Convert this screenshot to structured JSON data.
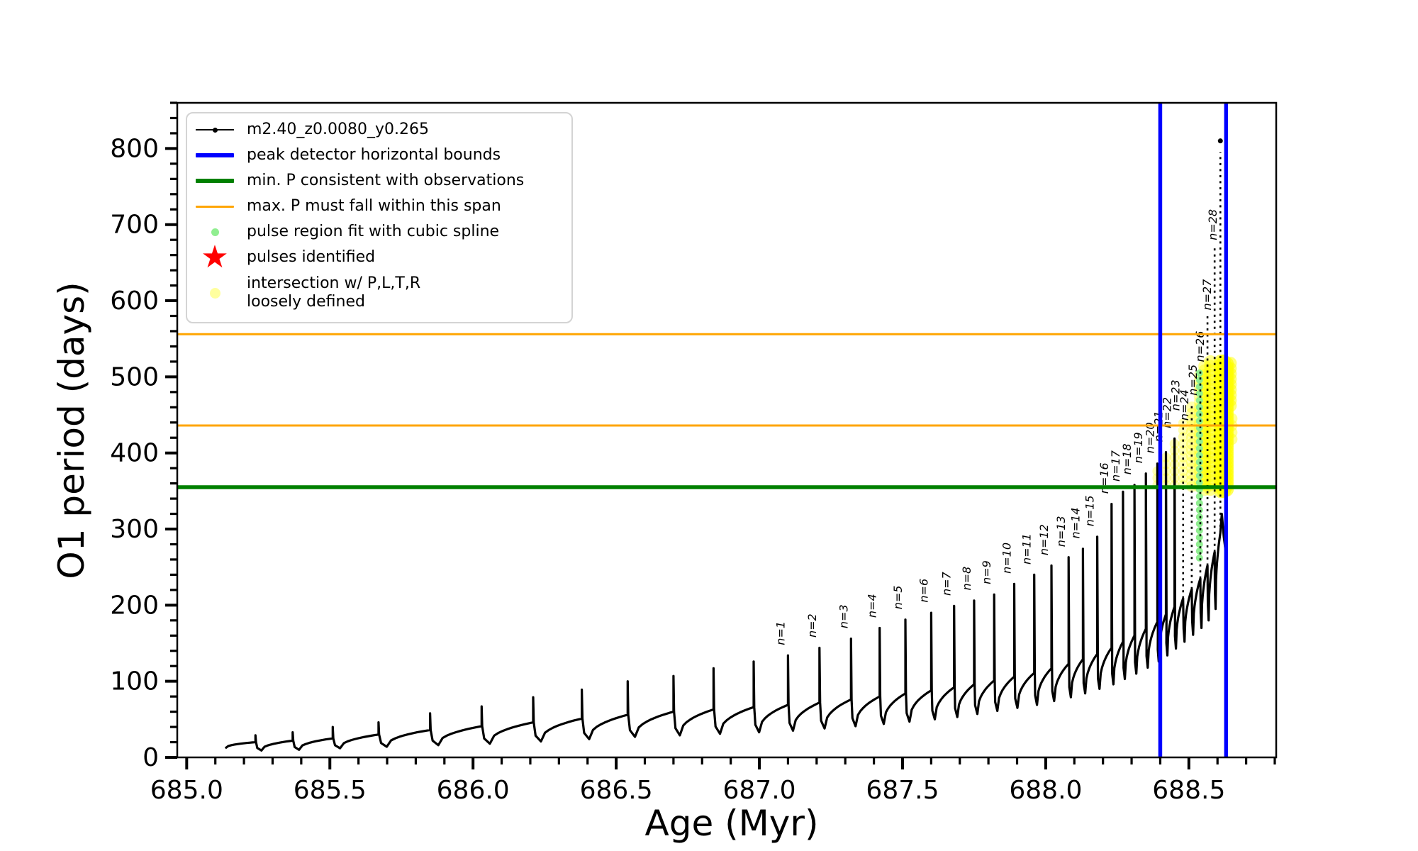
{
  "figure": {
    "xlabel": "Age (Myr)",
    "ylabel": "O1 period (days)",
    "background": "#ffffff"
  },
  "legend": {
    "items": [
      {
        "label": "m2.40_z0.0080_y0.265",
        "swatch": "line-dot",
        "color": "#000000"
      },
      {
        "label": "peak detector horizontal bounds",
        "swatch": "line",
        "color": "#0000ff"
      },
      {
        "label": "min. P consistent with observations",
        "swatch": "line",
        "color": "#008000"
      },
      {
        "label": "max. P must fall within this span",
        "swatch": "line",
        "color": "#ffa500"
      },
      {
        "label": "pulse region fit with cubic spline",
        "swatch": "dot",
        "color": "#90ee90"
      },
      {
        "label": "pulses identified",
        "swatch": "star",
        "color": "#ff0000"
      },
      {
        "label": "intersection w/ P,L,T,R\nloosely defined",
        "swatch": "dot-pale",
        "color": "#ffff00"
      }
    ]
  },
  "chart_data": {
    "type": "line",
    "title": "",
    "xlabel": "Age (Myr)",
    "ylabel": "O1 period (days)",
    "xlim": [
      684.967,
      688.805
    ],
    "ylim": [
      0,
      860
    ],
    "grid": false,
    "legend_position": "upper left",
    "x_major_ticks": [
      685.0,
      685.5,
      686.0,
      686.5,
      687.0,
      687.5,
      688.0,
      688.5
    ],
    "x_tick_labels": [
      "685.0",
      "685.5",
      "686.0",
      "686.5",
      "687.0",
      "687.5",
      "688.0",
      "688.5"
    ],
    "x_minor_step": 0.1,
    "y_major_ticks": [
      0,
      100,
      200,
      300,
      400,
      500,
      600,
      700,
      800
    ],
    "y_tick_labels": [
      "0",
      "100",
      "200",
      "300",
      "400",
      "500",
      "600",
      "700",
      "800"
    ],
    "y_minor_step": 20,
    "series_label": "m2.40_z0.0080_y0.265",
    "series_color": "#000000",
    "start": {
      "age": 685.135,
      "value": 12
    },
    "end_tail": [
      [
        688.615,
        320
      ],
      [
        688.622,
        290
      ],
      [
        688.628,
        272
      ]
    ],
    "pulses": {
      "ages": [
        685.24,
        685.37,
        685.51,
        685.67,
        685.85,
        686.03,
        686.21,
        686.38,
        686.54,
        686.7,
        686.84,
        686.98,
        687.1,
        687.21,
        687.32,
        687.42,
        687.51,
        687.6,
        687.68,
        687.75,
        687.82,
        687.89,
        687.96,
        688.02,
        688.08,
        688.13,
        688.18,
        688.23,
        688.27,
        688.31,
        688.35,
        688.39,
        688.42,
        688.45,
        688.48,
        688.51,
        688.54,
        688.565,
        688.59,
        688.61
      ],
      "peaks": [
        29,
        33,
        40,
        46,
        58,
        67,
        79,
        89,
        100,
        107,
        117,
        126,
        134,
        144,
        156,
        170,
        181,
        190,
        199,
        206,
        214,
        228,
        240,
        252,
        263,
        274,
        290,
        333,
        349,
        358,
        373,
        386,
        401,
        419,
        442,
        465,
        507,
        583,
        671,
        795
      ],
      "shoulders": [
        20,
        22,
        25,
        30,
        36,
        41,
        46,
        51,
        56,
        60,
        63,
        66,
        69,
        72,
        76,
        80,
        84,
        88,
        92,
        96,
        101,
        106,
        111,
        117,
        123,
        129,
        136,
        144,
        152,
        160,
        169,
        178,
        188,
        198,
        209,
        221,
        235,
        252,
        270,
        295
      ],
      "dips": [
        9,
        10,
        12,
        14,
        16,
        18,
        21,
        24,
        27,
        29,
        31,
        33,
        35,
        38,
        41,
        44,
        47,
        50,
        53,
        57,
        61,
        65,
        69,
        74,
        79,
        84,
        90,
        96,
        103,
        110,
        118,
        126,
        134,
        143,
        152,
        161,
        170,
        180,
        195,
        230
      ]
    },
    "pulse_labels": {
      "first_labeled_index": 12,
      "format": "n=#",
      "count": 28,
      "anchor_overrides": {
        "24": 435,
        "25": 468,
        "26": 512,
        "27": 580,
        "28": 672
      }
    },
    "dashed_spike_peak_threshold": 430,
    "reference_lines": {
      "blue_vertical_ages": [
        688.4,
        688.63
      ],
      "blue_color": "#0000ff",
      "orange_horizontal_values": [
        556,
        436
      ],
      "orange_color": "#ffa500",
      "green_horizontal_value": 355,
      "green_color": "#008000"
    },
    "green_spline_dots": {
      "age": 688.537,
      "vmin": 262,
      "vmax": 510,
      "step": 9,
      "r": 5,
      "color": "#90ee90"
    },
    "yellow_color": "#ffff00",
    "yellow_columns": [
      {
        "age": 688.39,
        "vmin": 358,
        "vmax": 384,
        "step": 9,
        "r": 7,
        "alpha": 0.3
      },
      {
        "age": 688.42,
        "vmin": 358,
        "vmax": 399,
        "step": 9,
        "r": 7,
        "alpha": 0.3
      },
      {
        "age": 688.45,
        "vmin": 358,
        "vmax": 417,
        "step": 9,
        "r": 7,
        "alpha": 0.3
      },
      {
        "age": 688.48,
        "vmin": 358,
        "vmax": 440,
        "step": 9,
        "r": 7,
        "alpha": 0.3
      },
      {
        "age": 688.51,
        "vmin": 356,
        "vmax": 463,
        "step": 8,
        "r": 8,
        "alpha": 0.32
      },
      {
        "age": 688.537,
        "vmin": 355,
        "vmax": 505,
        "step": 7,
        "r": 8,
        "alpha": 0.32
      },
      {
        "age": 688.555,
        "vmin": 352,
        "vmax": 518,
        "step": 6,
        "r": 9,
        "alpha": 0.4
      },
      {
        "age": 688.575,
        "vmin": 352,
        "vmax": 520,
        "step": 6,
        "r": 9,
        "alpha": 0.45
      },
      {
        "age": 688.612,
        "vmin": 350,
        "vmax": 520,
        "step": 5,
        "r": 10,
        "alpha": 0.6
      },
      {
        "age": 688.622,
        "vmin": 350,
        "vmax": 522,
        "step": 5,
        "r": 10,
        "alpha": 0.65
      },
      {
        "age": 688.632,
        "vmin": 352,
        "vmax": 518,
        "step": 5,
        "r": 10,
        "alpha": 0.65
      },
      {
        "age": 688.645,
        "vmin": 462,
        "vmax": 520,
        "step": 7,
        "r": 9,
        "alpha": 0.5
      },
      {
        "age": 688.65,
        "vmin": 418,
        "vmax": 446,
        "step": 9,
        "r": 8,
        "alpha": 0.4
      }
    ],
    "lone_dot": {
      "age": 688.61,
      "value": 810
    }
  }
}
